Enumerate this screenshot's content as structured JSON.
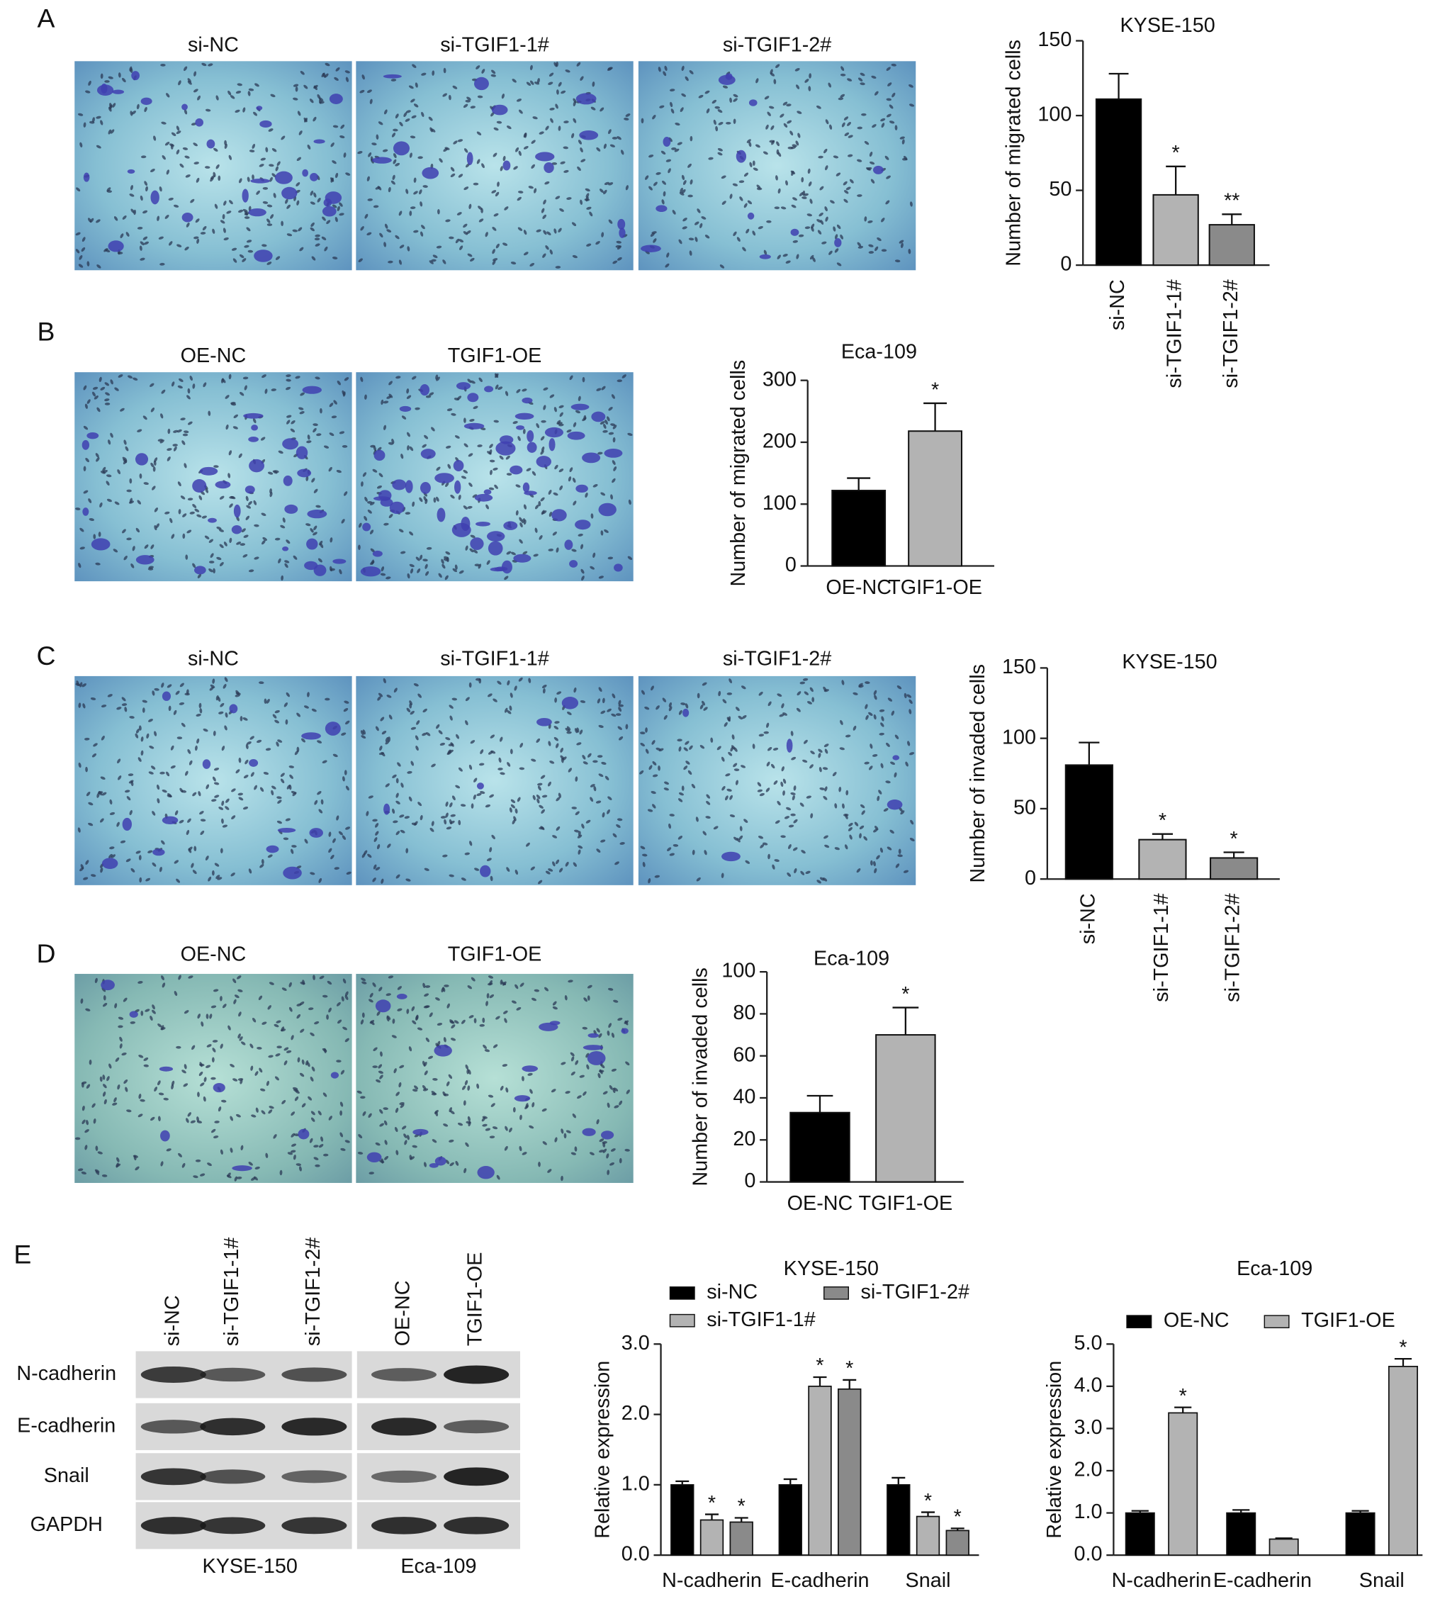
{
  "panels": [
    "A",
    "B",
    "C",
    "D",
    "E"
  ],
  "micrograph_rows": [
    {
      "captions": [
        "si-NC",
        "si-TGIF1-1#",
        "si-TGIF1-2#"
      ]
    },
    {
      "captions": [
        "OE-NC",
        "TGIF1-OE"
      ]
    },
    {
      "captions": [
        "si-NC",
        "si-TGIF1-1#",
        "si-TGIF1-2#"
      ]
    },
    {
      "captions": [
        "OE-NC",
        "TGIF1-OE"
      ]
    }
  ],
  "blot": {
    "lanes": [
      "si-NC",
      "si-TGIF1-1#",
      "si-TGIF1-2#",
      "OE-NC",
      "TGIF1-OE"
    ],
    "proteins": [
      "N-cadherin",
      "E-cadherin",
      "Snail",
      "GAPDH"
    ],
    "groups": [
      "KYSE-150",
      "Eca-109"
    ]
  },
  "chart_data": [
    {
      "type": "bar",
      "title": "KYSE-150",
      "ylabel": "Number of migrated cells",
      "categories": [
        "si-NC",
        "si-TGIF1-1#",
        "si-TGIF1-2#"
      ],
      "values": [
        111,
        47,
        27
      ],
      "errors": [
        17,
        19,
        7
      ],
      "annotations": [
        null,
        "*",
        "**"
      ],
      "colors": [
        "#000000",
        "#b3b3b3",
        "#8a8a8a"
      ],
      "rotated_labels": true,
      "ylim": [
        0,
        150
      ],
      "yticks": [
        0,
        50,
        100,
        150
      ]
    },
    {
      "type": "bar",
      "title": "Eca-109",
      "ylabel": "Number of migrated cells",
      "categories": [
        "OE-NC",
        "TGIF1-OE"
      ],
      "values": [
        122,
        218
      ],
      "errors": [
        20,
        45
      ],
      "annotations": [
        null,
        "*"
      ],
      "colors": [
        "#000000",
        "#b3b3b3"
      ],
      "rotated_labels": false,
      "ylim": [
        0,
        300
      ],
      "yticks": [
        0,
        100,
        200,
        300
      ]
    },
    {
      "type": "bar",
      "title": "KYSE-150",
      "ylabel": "Number of invaded cells",
      "categories": [
        "si-NC",
        "si-TGIF1-1#",
        "si-TGIF1-2#"
      ],
      "values": [
        81,
        28,
        15
      ],
      "errors": [
        16,
        4,
        4
      ],
      "annotations": [
        null,
        "*",
        "*"
      ],
      "colors": [
        "#000000",
        "#b3b3b3",
        "#8a8a8a"
      ],
      "rotated_labels": true,
      "ylim": [
        0,
        150
      ],
      "yticks": [
        0,
        50,
        100,
        150
      ]
    },
    {
      "type": "bar",
      "title": "Eca-109",
      "ylabel": "Number of invaded cells",
      "categories": [
        "OE-NC",
        "TGIF1-OE"
      ],
      "values": [
        33,
        70
      ],
      "errors": [
        8,
        13
      ],
      "annotations": [
        null,
        "*"
      ],
      "colors": [
        "#000000",
        "#b3b3b3"
      ],
      "rotated_labels": false,
      "ylim": [
        0,
        100
      ],
      "yticks": [
        0,
        20,
        40,
        60,
        80,
        100
      ]
    },
    {
      "type": "grouped_bar",
      "title": "KYSE-150",
      "ylabel": "Relative expression",
      "categories": [
        "N-cadherin",
        "E-cadherin",
        "Snail"
      ],
      "series": [
        {
          "name": "si-NC",
          "color": "#000000",
          "values": [
            1.0,
            1.0,
            1.0
          ],
          "errors": [
            0.05,
            0.08,
            0.1
          ]
        },
        {
          "name": "si-TGIF1-1#",
          "color": "#b3b3b3",
          "values": [
            0.5,
            2.4,
            0.55
          ],
          "errors": [
            0.08,
            0.13,
            0.06
          ],
          "annotations": [
            "*",
            "*",
            "*"
          ]
        },
        {
          "name": "si-TGIF1-2#",
          "color": "#8a8a8a",
          "values": [
            0.47,
            2.36,
            0.35
          ],
          "errors": [
            0.06,
            0.13,
            0.03
          ],
          "annotations": [
            "*",
            "*",
            "*"
          ]
        }
      ],
      "ylim": [
        0,
        3.0
      ],
      "yticks": [
        {
          "value": 0,
          "label": "0.0"
        },
        {
          "value": 1,
          "label": "1.0"
        },
        {
          "value": 2,
          "label": "2.0"
        },
        {
          "value": 3,
          "label": "3.0"
        }
      ]
    },
    {
      "type": "grouped_bar",
      "title": "Eca-109",
      "ylabel": "Relative expression",
      "categories": [
        "N-cadherin",
        "E-cadherin",
        "Snail"
      ],
      "series": [
        {
          "name": "OE-NC",
          "color": "#000000",
          "values": [
            1.0,
            1.0,
            1.0
          ],
          "errors": [
            0.05,
            0.07,
            0.05
          ]
        },
        {
          "name": "TGIF1-OE",
          "color": "#b3b3b3",
          "values": [
            3.37,
            0.38,
            4.47
          ],
          "errors": [
            0.13,
            0.02,
            0.18
          ],
          "annotations": [
            "*",
            null,
            "*"
          ]
        }
      ],
      "ylim": [
        0,
        5.0
      ],
      "yticks": [
        {
          "value": 0,
          "label": "0.0"
        },
        {
          "value": 1,
          "label": "1.0"
        },
        {
          "value": 2,
          "label": "2.0"
        },
        {
          "value": 3,
          "label": "3.0"
        },
        {
          "value": 4,
          "label": "4.0"
        },
        {
          "value": 5,
          "label": "5.0"
        }
      ]
    }
  ]
}
